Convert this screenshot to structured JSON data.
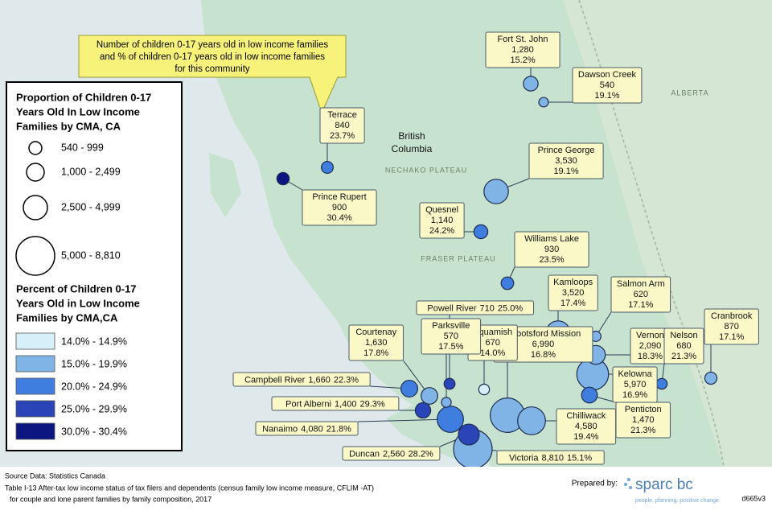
{
  "callout": [
    "Number of children 0-17 years old in low income families",
    "and % of children 0-17 years old in low income families",
    "for this community"
  ],
  "map_labels": {
    "province": [
      "British",
      "Columbia"
    ],
    "regions": [
      "NECHAKO PLATEAU",
      "FRASER PLATEAU",
      "ALBERTA"
    ]
  },
  "size_legend": {
    "title": [
      "Proportion of Children 0-17",
      "Years Old In Low Income",
      "Families by CMA, CA"
    ],
    "classes": [
      "540 - 999",
      "1,000 - 2,499",
      "2,500 - 4,999",
      "5,000 - 8,810"
    ]
  },
  "color_legend": {
    "title": [
      "Percent of Children 0-17",
      "Years Old in Low Income",
      "Families by CMA,CA"
    ],
    "classes": [
      {
        "min": 14.0,
        "max": 14.9,
        "label": "14.0% - 14.9%",
        "color": "#d6eff8"
      },
      {
        "min": 15.0,
        "max": 19.9,
        "label": "15.0% - 19.9%",
        "color": "#80b3e6"
      },
      {
        "min": 20.0,
        "max": 24.9,
        "label": "20.0% - 24.9%",
        "color": "#3f7ddf"
      },
      {
        "min": 25.0,
        "max": 29.9,
        "label": "25.0% - 29.9%",
        "color": "#2a45b8"
      },
      {
        "min": 30.0,
        "max": 30.4,
        "label": "30.0% - 30.4%",
        "color": "#0c1680"
      }
    ]
  },
  "communities": [
    {
      "name": "Fort St. John",
      "count": 1280,
      "count_label": "1,280",
      "percent": 15.2,
      "percent_label": "15.2%"
    },
    {
      "name": "Dawson Creek",
      "count": 540,
      "count_label": "540",
      "percent": 19.1,
      "percent_label": "19.1%"
    },
    {
      "name": "Terrace",
      "count": 840,
      "count_label": "840",
      "percent": 23.7,
      "percent_label": "23.7%"
    },
    {
      "name": "Prince Rupert",
      "count": 900,
      "count_label": "900",
      "percent": 30.4,
      "percent_label": "30.4%"
    },
    {
      "name": "Prince George",
      "count": 3530,
      "count_label": "3,530",
      "percent": 19.1,
      "percent_label": "19.1%"
    },
    {
      "name": "Quesnel",
      "count": 1140,
      "count_label": "1,140",
      "percent": 24.2,
      "percent_label": "24.2%"
    },
    {
      "name": "Williams Lake",
      "count": 930,
      "count_label": "930",
      "percent": 23.5,
      "percent_label": "23.5%"
    },
    {
      "name": "Kamloops",
      "count": 3520,
      "count_label": "3,520",
      "percent": 17.4,
      "percent_label": "17.4%"
    },
    {
      "name": "Salmon Arm",
      "count": 620,
      "count_label": "620",
      "percent": 17.1,
      "percent_label": "17.1%"
    },
    {
      "name": "Cranbrook",
      "count": 870,
      "count_label": "870",
      "percent": 17.1,
      "percent_label": "17.1%"
    },
    {
      "name": "Vernon",
      "count": 2090,
      "count_label": "2,090",
      "percent": 18.3,
      "percent_label": "18.3%"
    },
    {
      "name": "Nelson",
      "count": 680,
      "count_label": "680",
      "percent": 21.3,
      "percent_label": "21.3%"
    },
    {
      "name": "Kelowna",
      "count": 5970,
      "count_label": "5,970",
      "percent": 16.9,
      "percent_label": "16.9%"
    },
    {
      "name": "Penticton",
      "count": 1470,
      "count_label": "1,470",
      "percent": 21.3,
      "percent_label": "21.3%"
    },
    {
      "name": "Chilliwack",
      "count": 4580,
      "count_label": "4,580",
      "percent": 19.4,
      "percent_label": "19.4%"
    },
    {
      "name": "Abbotsford Mission",
      "count": 6990,
      "count_label": "6,990",
      "percent": 16.8,
      "percent_label": "16.8%"
    },
    {
      "name": "Squamish",
      "count": 670,
      "count_label": "670",
      "percent": 14.0,
      "percent_label": "14.0%"
    },
    {
      "name": "Powell River",
      "count": 710,
      "count_label": "710",
      "percent": 25.0,
      "percent_label": "25.0%"
    },
    {
      "name": "Parksville",
      "count": 570,
      "count_label": "570",
      "percent": 17.5,
      "percent_label": "17.5%"
    },
    {
      "name": "Courtenay",
      "count": 1630,
      "count_label": "1,630",
      "percent": 17.8,
      "percent_label": "17.8%"
    },
    {
      "name": "Campbell River",
      "count": 1660,
      "count_label": "1,660",
      "percent": 22.3,
      "percent_label": "22.3%"
    },
    {
      "name": "Port Alberni",
      "count": 1400,
      "count_label": "1,400",
      "percent": 29.3,
      "percent_label": "29.3%"
    },
    {
      "name": "Nanaimo",
      "count": 4080,
      "count_label": "4,080",
      "percent": 21.8,
      "percent_label": "21.8%"
    },
    {
      "name": "Duncan",
      "count": 2560,
      "count_label": "2,560",
      "percent": 28.2,
      "percent_label": "28.2%"
    },
    {
      "name": "Victoria",
      "count": 8810,
      "count_label": "8,810",
      "percent": 15.1,
      "percent_label": "15.1%"
    }
  ],
  "footer": {
    "source": "Source Data: Statistics Canada",
    "table_lines": [
      "Table I-13 After-tax low income status of tax filers and dependents (census family low income measure, CFLIM -AT)",
      "for couple and lone parent families by family composition, 2017"
    ],
    "prepared_by": "Prepared by:",
    "logo": "sparc bc",
    "tagline": "people. planning. positive change.",
    "code": "d665v3"
  }
}
